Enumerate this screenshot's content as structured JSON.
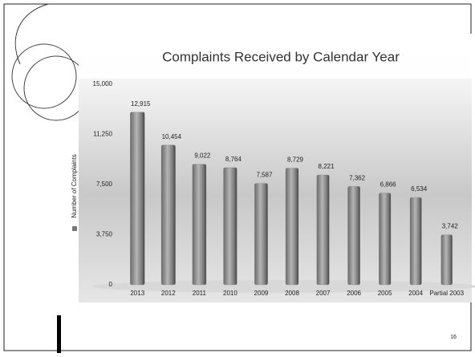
{
  "chart_data": {
    "type": "bar",
    "title": "Complaints Received by Calendar Year",
    "categories": [
      "2013",
      "2012",
      "2011",
      "2010",
      "2009",
      "2008",
      "2007",
      "2006",
      "2005",
      "2004",
      "Partial 2003"
    ],
    "series": [
      {
        "name": "Number of Complaints",
        "color": "#8a8a8a",
        "values": [
          12915,
          10454,
          9022,
          8764,
          7587,
          8729,
          8221,
          7362,
          6866,
          6534,
          3742
        ],
        "value_labels": [
          "12,915",
          "10,454",
          "9,022",
          "8,764",
          "7,587",
          "8,729",
          "8,221",
          "7,362",
          "6,866",
          "6,534",
          "3,742"
        ]
      }
    ],
    "ylim": [
      0,
      15000
    ],
    "yticks": [
      0,
      {
        "value": 3750,
        "label": "3,750"
      },
      {
        "value": 7500,
        "label": "7,500"
      },
      {
        "value": 11250,
        "label": "11,250"
      },
      {
        "value": 15000,
        "label": "15,000"
      }
    ],
    "grid": false,
    "legend": "left"
  },
  "slide_number": "16"
}
